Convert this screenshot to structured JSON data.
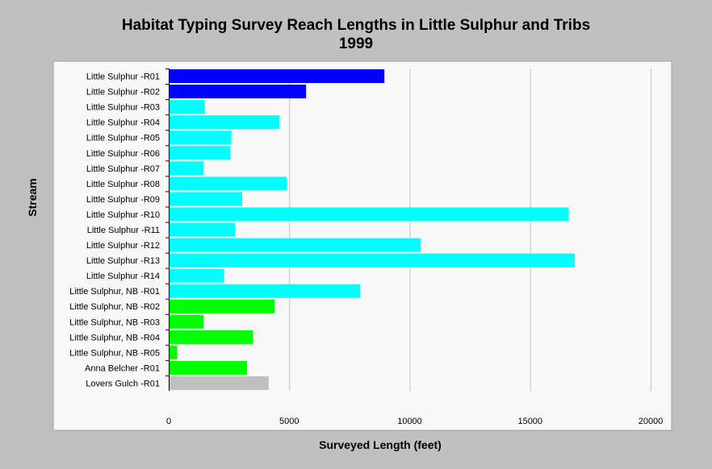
{
  "chart_data": {
    "type": "bar",
    "orientation": "horizontal",
    "title_lines": [
      "Habitat Typing Survey Reach Lengths in Little Sulphur and Tribs",
      "1999"
    ],
    "xlabel": "Surveyed Length (feet)",
    "ylabel": "Stream",
    "xlim": [
      0,
      20000
    ],
    "xticks": [
      0,
      5000,
      10000,
      15000,
      20000
    ],
    "grid": "vertical",
    "categories": [
      "Little Sulphur -R01",
      "Little Sulphur -R02",
      "Little Sulphur -R03",
      "Little Sulphur -R04",
      "Little Sulphur -R05",
      "Little Sulphur -R06",
      "Little Sulphur -R07",
      "Little Sulphur -R08",
      "Little Sulphur -R09",
      "Little Sulphur -R10",
      "Little Sulphur -R11",
      "Little Sulphur -R12",
      "Little Sulphur -R13",
      "Little Sulphur -R14",
      "Little Sulphur, NB -R01",
      "Little Sulphur, NB -R02",
      "Little Sulphur, NB -R03",
      "Little Sulphur, NB -R04",
      "Little Sulphur, NB -R05",
      "Anna Belcher -R01",
      "Lovers Gulch -R01"
    ],
    "values": [
      8950,
      5700,
      1500,
      4600,
      2600,
      2550,
      1450,
      4900,
      3050,
      16600,
      2750,
      10450,
      16850,
      2300,
      7950,
      4400,
      1450,
      3500,
      350,
      3250,
      4150
    ],
    "colors": [
      "#0000ff",
      "#0000ff",
      "#00ffff",
      "#00ffff",
      "#00ffff",
      "#00ffff",
      "#00ffff",
      "#00ffff",
      "#00ffff",
      "#00ffff",
      "#00ffff",
      "#00ffff",
      "#00ffff",
      "#00ffff",
      "#00ffff",
      "#00ff00",
      "#00ff00",
      "#00ff00",
      "#00ff00",
      "#00ff00",
      "#c0c0c0"
    ]
  }
}
